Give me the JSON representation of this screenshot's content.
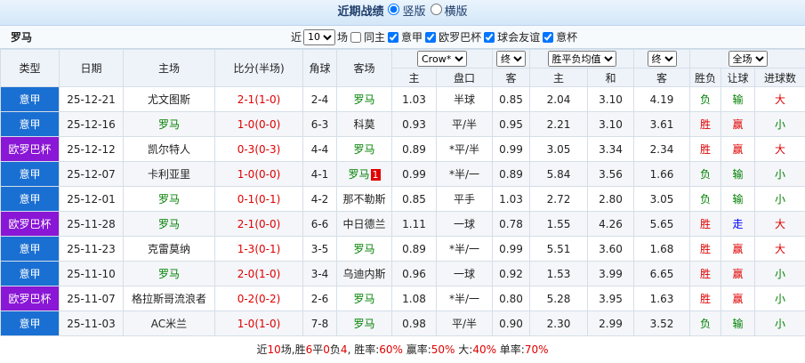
{
  "header": {
    "title": "近期战绩",
    "views": [
      {
        "label": "竖版",
        "checked": true
      },
      {
        "label": "横版",
        "checked": false
      }
    ]
  },
  "filters": {
    "team": "罗马",
    "prefix": "近",
    "count": "10",
    "suffix": "场",
    "options": [
      {
        "label": "同主",
        "checked": false
      },
      {
        "label": "意甲",
        "checked": true
      },
      {
        "label": "欧罗巴杯",
        "checked": true
      },
      {
        "label": "球会友谊",
        "checked": true
      },
      {
        "label": "意杯",
        "checked": true
      }
    ]
  },
  "table": {
    "columns": [
      "类型",
      "日期",
      "主场",
      "比分(半场)",
      "角球",
      "客场"
    ],
    "selects": [
      {
        "value": "Crow*",
        "span": 2
      },
      {
        "value": "终",
        "span": 1
      },
      {
        "value": "胜平负均值",
        "span": 2
      },
      {
        "value": "终",
        "span": 1
      },
      {
        "value": "全场",
        "span": 3
      }
    ],
    "sub_columns": [
      "主",
      "盘口",
      "客",
      "主",
      "和",
      "客",
      "胜负",
      "让球",
      "进球数"
    ],
    "league_colors": {
      "意甲": "#1a6fd2",
      "欧罗巴杯": "#8a16d6"
    },
    "result_colors": {
      "胜": "#e00000",
      "赢": "#e00000",
      "大": "#e00000",
      "负": "#008000",
      "输": "#008000",
      "小": "#008000",
      "走": "#0000ff"
    },
    "rows": [
      [
        "意甲",
        "25-12-21",
        "尤文图斯",
        "2-1(1-0)",
        "2-4",
        "罗马",
        "1.03",
        "半球",
        "0.85",
        "2.04",
        "3.10",
        "4.19",
        "负",
        "输",
        "大"
      ],
      [
        "意甲",
        "25-12-16",
        "罗马",
        "1-0(0-0)",
        "6-3",
        "科莫",
        "0.93",
        "平/半",
        "0.95",
        "2.21",
        "3.10",
        "3.61",
        "胜",
        "赢",
        "小"
      ],
      [
        "欧罗巴杯",
        "25-12-12",
        "凯尔特人",
        "0-3(0-3)",
        "4-4",
        "罗马",
        "0.89",
        "*平/半",
        "0.99",
        "3.05",
        "3.34",
        "2.34",
        "胜",
        "赢",
        "大"
      ],
      [
        "意甲",
        "25-12-07",
        "卡利亚里",
        "1-0(0-0)",
        "4-1",
        "罗马",
        "0.99",
        "*半/一",
        "0.89",
        "5.84",
        "3.56",
        "1.66",
        "负",
        "输",
        "小"
      ],
      [
        "意甲",
        "25-12-01",
        "罗马",
        "0-1(0-1)",
        "4-2",
        "那不勒斯",
        "0.85",
        "平手",
        "1.03",
        "2.72",
        "2.80",
        "3.05",
        "负",
        "输",
        "小"
      ],
      [
        "欧罗巴杯",
        "25-11-28",
        "罗马",
        "2-1(0-0)",
        "6-6",
        "中日德兰",
        "1.11",
        "一球",
        "0.78",
        "1.55",
        "4.26",
        "5.65",
        "胜",
        "走",
        "大"
      ],
      [
        "意甲",
        "25-11-23",
        "克雷莫纳",
        "1-3(0-1)",
        "3-5",
        "罗马",
        "0.89",
        "*半/一",
        "0.99",
        "5.51",
        "3.60",
        "1.68",
        "胜",
        "赢",
        "大"
      ],
      [
        "意甲",
        "25-11-10",
        "罗马",
        "2-0(1-0)",
        "3-4",
        "乌迪内斯",
        "0.96",
        "一球",
        "0.92",
        "1.53",
        "3.99",
        "6.65",
        "胜",
        "赢",
        "小"
      ],
      [
        "欧罗巴杯",
        "25-11-07",
        "格拉斯哥流浪者",
        "0-2(0-2)",
        "2-6",
        "罗马",
        "1.08",
        "*半/一",
        "0.80",
        "5.28",
        "3.95",
        "1.63",
        "胜",
        "赢",
        "小"
      ],
      [
        "意甲",
        "25-11-03",
        "AC米兰",
        "1-0(1-0)",
        "7-8",
        "罗马",
        "0.98",
        "平/半",
        "0.90",
        "2.30",
        "2.99",
        "3.52",
        "负",
        "输",
        "小"
      ]
    ],
    "red_cards": [
      {
        "row": 3,
        "col": 5,
        "count": "1"
      }
    ]
  },
  "footer": [
    "近",
    "10",
    "场,胜",
    "6",
    "平",
    "0",
    "负",
    "4",
    ", 胜率:",
    "60%",
    " 赢率:",
    "50%",
    " 大:",
    "40%",
    " 单率:",
    "70%"
  ]
}
